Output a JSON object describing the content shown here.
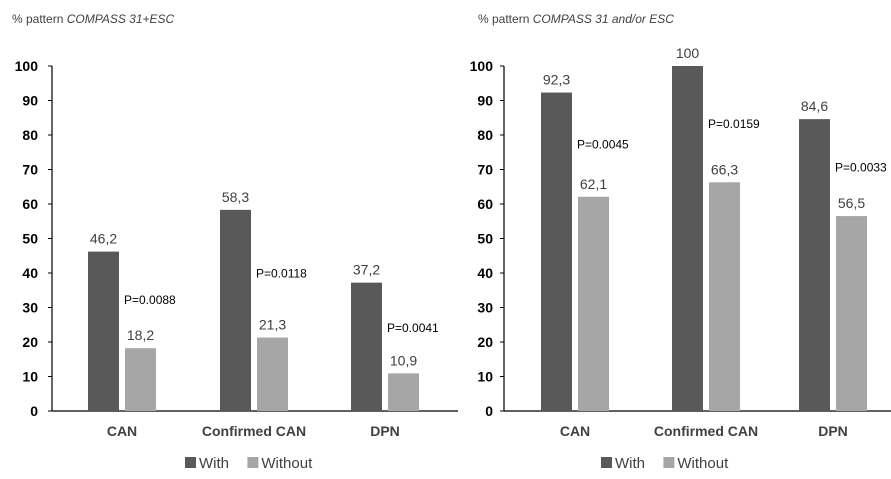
{
  "chart_data": [
    {
      "type": "bar",
      "title_prefix": "% pattern ",
      "title_italic": "COMPASS 31+ESC",
      "categories": [
        "CAN",
        "Confirmed CAN",
        "DPN"
      ],
      "series": [
        {
          "name": "With",
          "values": [
            46.2,
            58.3,
            37.2
          ],
          "labels": [
            "46,2",
            "58,3",
            "37,2"
          ],
          "color": "#595959"
        },
        {
          "name": "Without",
          "values": [
            18.2,
            21.3,
            10.9
          ],
          "labels": [
            "18,2",
            "21,3",
            "10,9"
          ],
          "color": "#a6a6a6"
        }
      ],
      "pvalues": [
        "P=0.0088",
        "P=0.0118",
        "P=0.0041"
      ],
      "ylim": [
        0,
        100
      ],
      "yticks": [
        "0",
        "10",
        "20",
        "30",
        "40",
        "50",
        "60",
        "70",
        "80",
        "90",
        "100"
      ],
      "grid": false,
      "legend": "bottom"
    },
    {
      "type": "bar",
      "title_prefix": "% pattern ",
      "title_italic": "COMPASS 31 and/or ESC",
      "categories": [
        "CAN",
        "Confirmed CAN",
        "DPN"
      ],
      "series": [
        {
          "name": "With",
          "values": [
            92.3,
            100,
            84.6
          ],
          "labels": [
            "92,3",
            "100",
            "84,6"
          ],
          "color": "#595959"
        },
        {
          "name": "Without",
          "values": [
            62.1,
            66.3,
            56.5
          ],
          "labels": [
            "62,1",
            "66,3",
            "56,5"
          ],
          "color": "#a6a6a6"
        }
      ],
      "pvalues": [
        "P=0.0045",
        "P=0.0159",
        "P=0.0033"
      ],
      "ylim": [
        0,
        100
      ],
      "yticks": [
        "0",
        "10",
        "20",
        "30",
        "40",
        "50",
        "60",
        "70",
        "80",
        "90",
        "100"
      ],
      "grid": false,
      "legend": "bottom"
    }
  ]
}
